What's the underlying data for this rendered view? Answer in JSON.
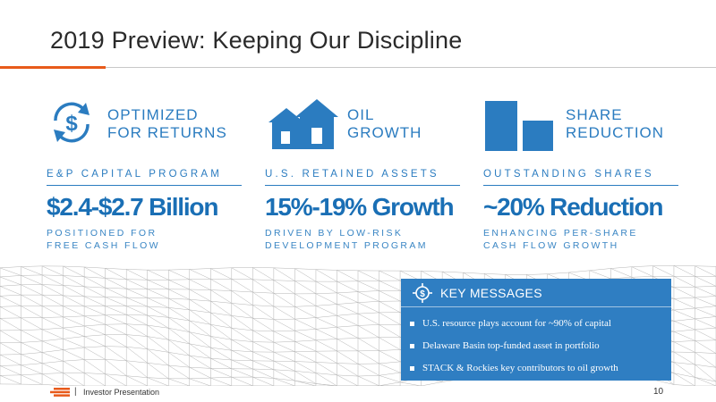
{
  "header": {
    "title": "2019 Preview: Keeping Our Discipline"
  },
  "columns": [
    {
      "icon": "dollar-cycle-icon",
      "label_line1": "OPTIMIZED",
      "label_line2": "FOR RETURNS",
      "subtitle": "E&P CAPITAL PROGRAM",
      "value": "$2.4-$2.7 Billion",
      "desc_line1": "POSITIONED FOR",
      "desc_line2": "FREE CASH FLOW"
    },
    {
      "icon": "house-growth-icon",
      "label_line1": "OIL",
      "label_line2": "GROWTH",
      "subtitle": "U.S. RETAINED ASSETS",
      "value": "15%-19% Growth",
      "desc_line1": "DRIVEN BY LOW-RISK",
      "desc_line2": "DEVELOPMENT PROGRAM"
    },
    {
      "icon": "bar-reduction-icon",
      "label_line1": "SHARE",
      "label_line2": "REDUCTION",
      "subtitle": "OUTSTANDING SHARES",
      "value": "~20% Reduction",
      "desc_line1": "ENHANCING PER-SHARE",
      "desc_line2": "CASH FLOW GROWTH"
    }
  ],
  "key_messages": {
    "title": "KEY MESSAGES",
    "icon": "dollar-target-icon",
    "items": [
      "U.S. resource plays account for ~90% of capital",
      "Delaware Basin top-funded asset in portfolio",
      "STACK & Rockies key contributors to oil growth"
    ]
  },
  "footer": {
    "separator": "|",
    "text": "Investor Presentation",
    "page_number": "10"
  },
  "colors": {
    "accent_orange": "#e85a1a",
    "brand_blue": "#2b7cc0",
    "box_blue": "#2f7ec2"
  }
}
